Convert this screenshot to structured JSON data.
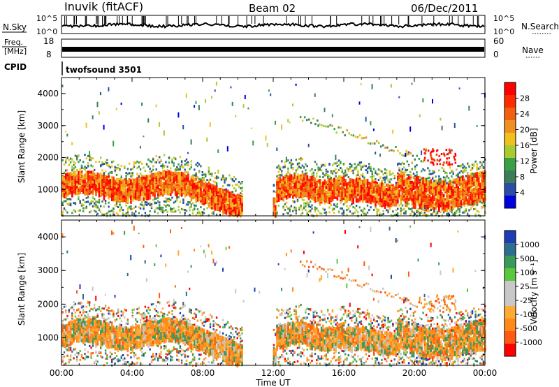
{
  "header": {
    "station": "Inuvik (fitACF)",
    "beam": "Beam 02",
    "date": "06/Dec/2011"
  },
  "noise_panel": {
    "left_label": "N.Sky",
    "right_label": "N.Search",
    "left_ticks": [
      "10^5",
      "10^0"
    ],
    "right_ticks": [
      "10^5",
      "10^0"
    ]
  },
  "freq_panel": {
    "left_label_line1": "Freq.",
    "left_label_line2": "[MHz]",
    "right_label": "Nave",
    "left_ticks": [
      "18",
      "8"
    ],
    "right_ticks": [
      "60",
      "0"
    ],
    "cpid_label": "CPID",
    "program": "twofsound 3501"
  },
  "colors": {
    "power_scale": [
      "#0000e0",
      "#2a4ea8",
      "#3a7d58",
      "#3aa048",
      "#a8cc30",
      "#f0c020",
      "#f09020",
      "#f06010",
      "#ff2a00",
      "#ff0000"
    ],
    "velocity_scale": [
      "#ff0000",
      "#ff5a10",
      "#ff8a1a",
      "#ffaa33",
      "#c8c8c8",
      "#c8c8c8",
      "#5ac83a",
      "#3a9a5a",
      "#2d6f8e",
      "#1e3cb4"
    ]
  },
  "chart_data": [
    {
      "type": "heatmap",
      "panel": "power",
      "xlabel": "Time UT",
      "ylabel": "Slant Range [km]",
      "xlim": [
        0,
        24
      ],
      "ylim": [
        180,
        4500
      ],
      "x_ticks": [
        "00:00",
        "04:00",
        "08:00",
        "12:00",
        "16:00",
        "20:00",
        "00:00"
      ],
      "y_ticks": [
        1000,
        2000,
        3000,
        4000
      ],
      "colorbar_label": "Power [dB]",
      "colorbar_range": [
        0,
        30
      ],
      "colorbar_ticks": [
        "4",
        "8",
        "12",
        "16",
        "20",
        "24",
        "28"
      ],
      "grid": false
    },
    {
      "type": "heatmap",
      "panel": "velocity",
      "xlabel": "Time UT",
      "ylabel": "Slant Range [km]",
      "xlim": [
        0,
        24
      ],
      "ylim": [
        180,
        4500
      ],
      "x_ticks": [
        "00:00",
        "04:00",
        "08:00",
        "12:00",
        "16:00",
        "20:00",
        "00:00"
      ],
      "y_ticks": [
        1000,
        2000,
        3000,
        4000
      ],
      "colorbar_label": "Velocity [m s⁻¹]",
      "colorbar_ticks": [
        "1000",
        "500",
        "100",
        "25",
        "-25",
        "-100",
        "-500",
        "-1000"
      ],
      "grid": false
    }
  ]
}
